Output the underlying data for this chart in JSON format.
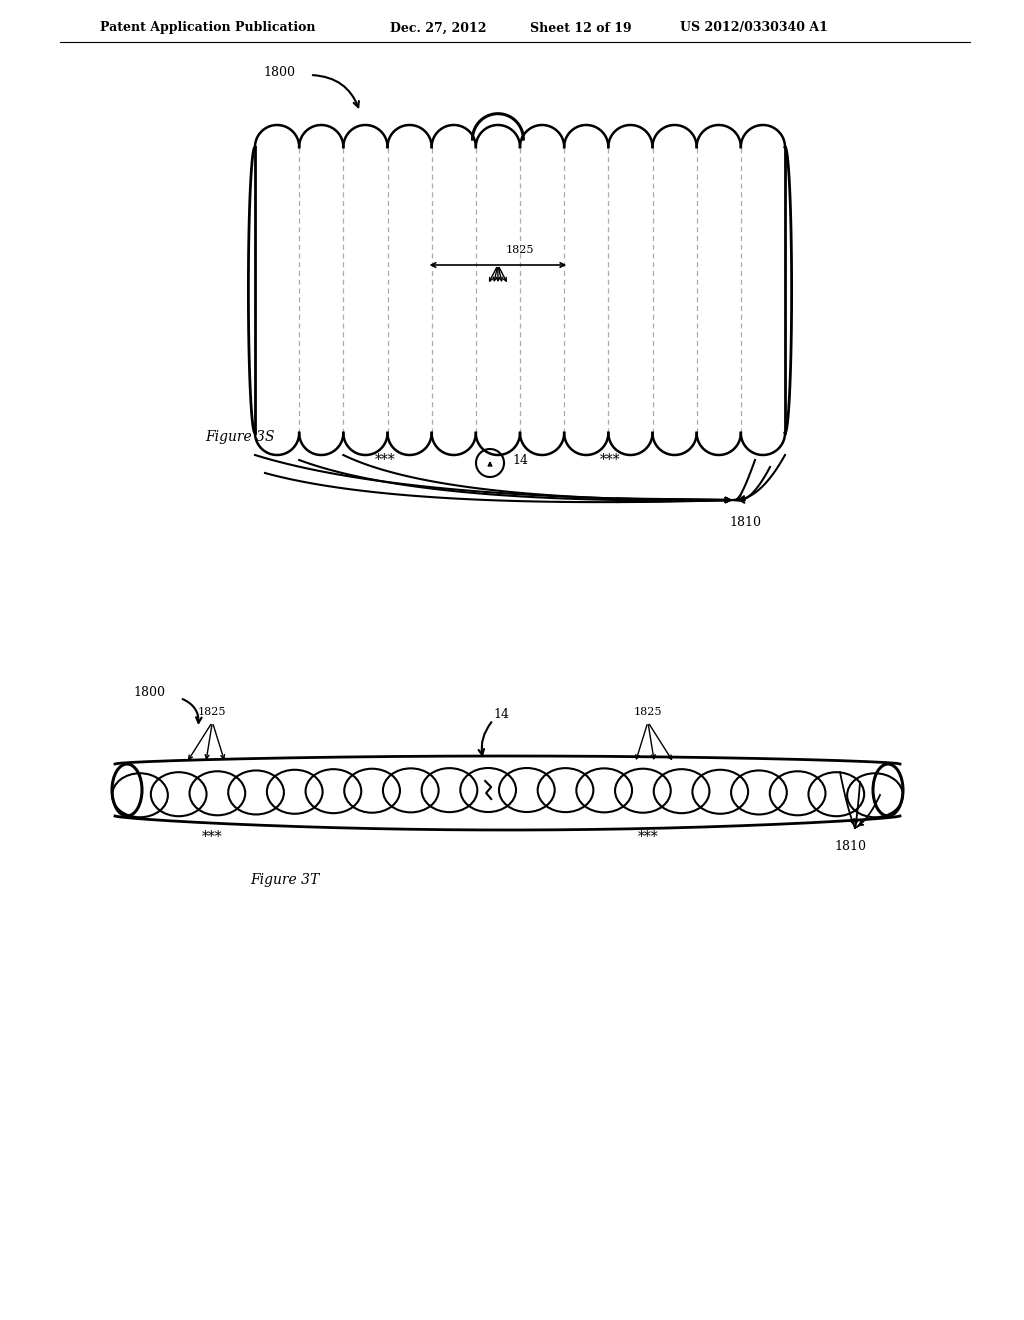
{
  "bg_color": "#ffffff",
  "line_color": "#000000",
  "dashed_color": "#aaaaaa",
  "header_line1": "Patent Application Publication",
  "header_line2": "Dec. 27, 2012",
  "header_line3": "Sheet 12 of 19",
  "header_line4": "US 2012/0330340 A1",
  "fig3s_label": "Figure 3S",
  "fig3t_label": "Figure 3T",
  "label_1800_top": "1800",
  "label_1810_top": "1810",
  "label_14_top": "14",
  "label_1825_top": "1825",
  "label_14_bot": "14",
  "label_1800_bot": "1800",
  "label_1810_bot": "1810",
  "label_1825_bot_left": "1825",
  "label_1825_bot_right": "1825"
}
